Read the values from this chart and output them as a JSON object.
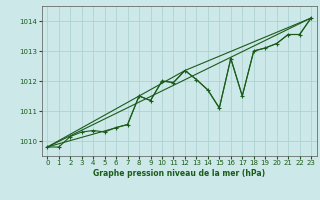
{
  "title": "Graphe pression niveau de la mer (hPa)",
  "bg_color": "#cce8e8",
  "grid_color": "#aacece",
  "line_color": "#1a5c1a",
  "xlim": [
    -0.5,
    23.5
  ],
  "ylim": [
    1009.5,
    1014.5
  ],
  "yticks": [
    1010,
    1011,
    1012,
    1013,
    1014
  ],
  "xticks": [
    0,
    1,
    2,
    3,
    4,
    5,
    6,
    7,
    8,
    9,
    10,
    11,
    12,
    13,
    14,
    15,
    16,
    17,
    18,
    19,
    20,
    21,
    22,
    23
  ],
  "main_series": {
    "x": [
      0,
      1,
      2,
      3,
      4,
      5,
      6,
      7,
      8,
      9,
      10,
      11,
      12,
      13,
      14,
      15,
      16,
      17,
      18,
      19,
      20,
      21,
      22,
      23
    ],
    "y": [
      1009.8,
      1009.8,
      1010.15,
      1010.3,
      1010.35,
      1010.3,
      1010.45,
      1010.55,
      1011.5,
      1011.35,
      1012.0,
      1011.95,
      1012.35,
      1012.05,
      1011.7,
      1011.1,
      1012.75,
      1011.5,
      1013.0,
      1013.1,
      1013.25,
      1013.55,
      1013.55,
      1014.1
    ]
  },
  "trend_straight": {
    "x": [
      0,
      23
    ],
    "y": [
      1009.8,
      1014.1
    ]
  },
  "trend_line2": {
    "x": [
      0,
      7,
      8,
      9,
      10,
      11,
      12,
      23
    ],
    "y": [
      1009.8,
      1010.55,
      1011.5,
      1011.35,
      1012.0,
      1011.95,
      1012.35,
      1014.1
    ]
  },
  "trend_line3": {
    "x": [
      0,
      12,
      13,
      14,
      15,
      16,
      17,
      18,
      19,
      20,
      21,
      22,
      23
    ],
    "y": [
      1009.8,
      1012.35,
      1012.05,
      1011.7,
      1011.1,
      1012.75,
      1011.5,
      1013.0,
      1013.1,
      1013.25,
      1013.55,
      1013.55,
      1014.1
    ]
  }
}
